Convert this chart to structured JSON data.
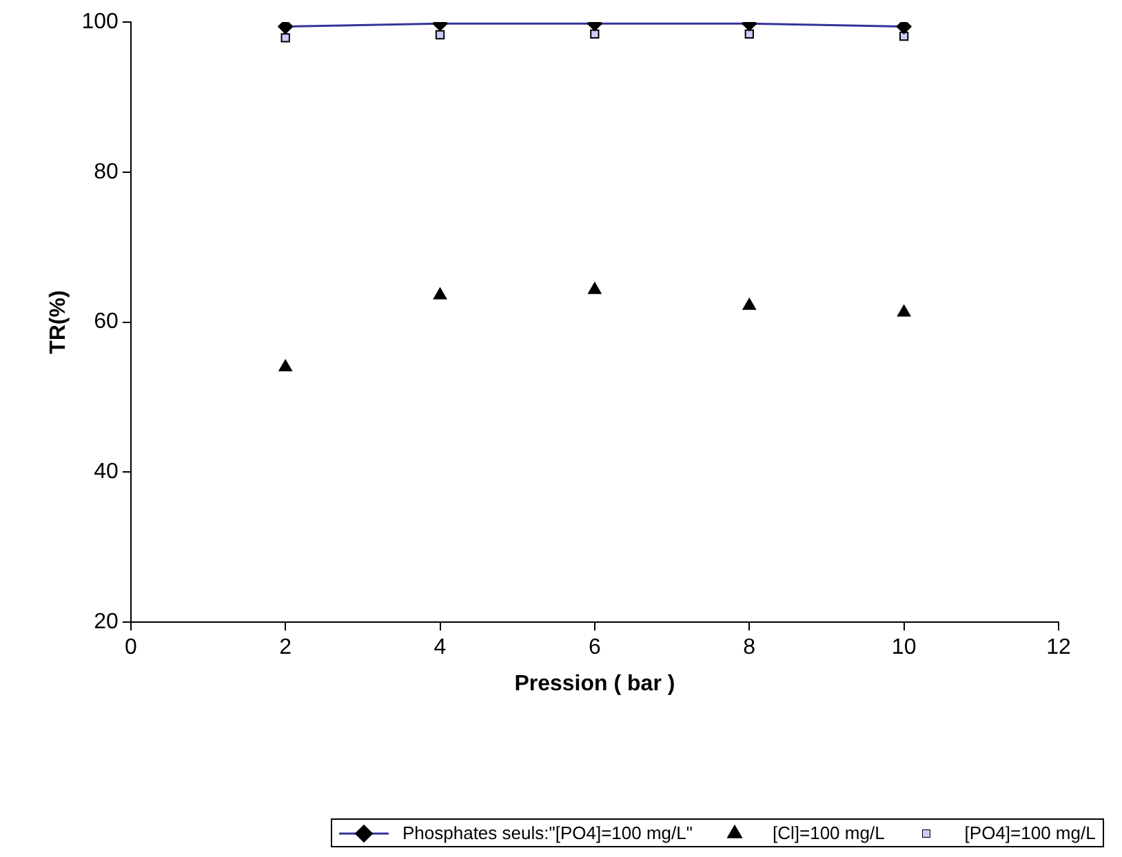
{
  "chart_data": {
    "type": "scatter",
    "xlabel": "Pression ( bar )",
    "ylabel": "TR(%)",
    "x": [
      2,
      4,
      6,
      8,
      10
    ],
    "series": [
      {
        "name": "Phosphates seuls:\"[PO4]=100 mg/L\"",
        "type": "line",
        "color": "#333399",
        "marker": "diamond",
        "values": [
          99.4,
          99.8,
          99.8,
          99.8,
          99.4
        ]
      },
      {
        "name": "[Cl]=100 mg/L",
        "color": "#000000",
        "marker": "triangle",
        "values": [
          54,
          63.6,
          64.3,
          62.2,
          61.3
        ]
      },
      {
        "name": "[PO4]=100 mg/L",
        "color": "#ccccff",
        "marker": "square",
        "values": [
          97.9,
          98.3,
          98.4,
          98.4,
          98.1
        ]
      }
    ],
    "xlim": [
      0,
      12
    ],
    "xticks": [
      0,
      2,
      4,
      6,
      8,
      10,
      12
    ],
    "ylim": [
      20,
      100
    ],
    "yticks": [
      20,
      40,
      60,
      80,
      100
    ],
    "grid": false,
    "legend": "bottom"
  }
}
